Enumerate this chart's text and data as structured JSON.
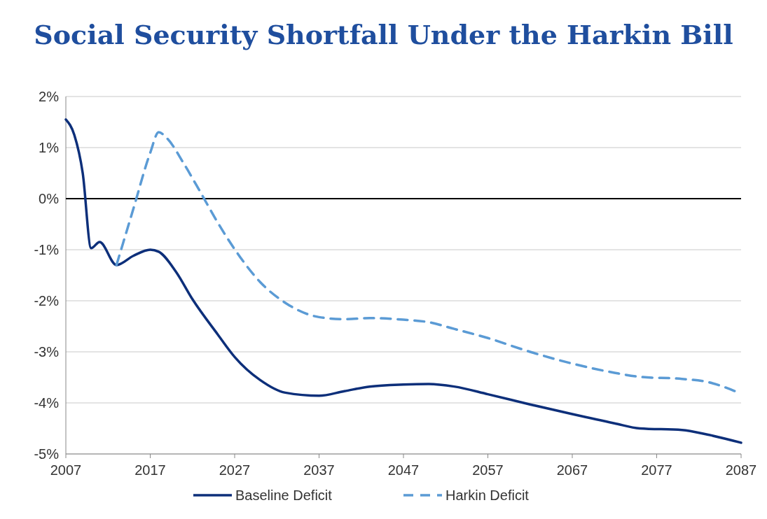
{
  "chart_data": {
    "type": "line",
    "title": "Social Security Shortfall Under the Harkin Bill",
    "xlim": [
      2007,
      2087
    ],
    "xticks": [
      2007,
      2017,
      2027,
      2037,
      2047,
      2057,
      2067,
      2077,
      2087
    ],
    "ylim": [
      -5,
      2
    ],
    "yticks": [
      {
        "value": -5,
        "label": "-5%"
      },
      {
        "value": -4,
        "label": "-4%"
      },
      {
        "value": -3,
        "label": "-3%"
      },
      {
        "value": -2,
        "label": "-2%"
      },
      {
        "value": -1,
        "label": "-1%"
      },
      {
        "value": 0,
        "label": "0%"
      },
      {
        "value": 1,
        "label": "1%"
      },
      {
        "value": 2,
        "label": "2%"
      }
    ],
    "grid": "y",
    "legend": "bottom",
    "ref_lines": [
      {
        "axis": "y",
        "value": 0,
        "color": "#000000"
      }
    ],
    "series": [
      {
        "name": "Baseline Deficit",
        "color": "#0d2f7a",
        "line_style": "solid",
        "x": [
          2007,
          2008,
          2009,
          2010,
          2011,
          2013,
          2015,
          2017,
          2018,
          2020,
          2022,
          2025,
          2027,
          2030,
          2033,
          2037,
          2040,
          2043,
          2047,
          2050,
          2053,
          2057,
          2062,
          2067,
          2072,
          2075,
          2080,
          2083,
          2087
        ],
        "values": [
          1.55,
          1.25,
          0.5,
          -0.97,
          -0.85,
          -1.3,
          -1.12,
          -1.0,
          -1.04,
          -1.42,
          -1.97,
          -2.66,
          -3.1,
          -3.55,
          -3.8,
          -3.86,
          -3.77,
          -3.68,
          -3.64,
          -3.63,
          -3.68,
          -3.83,
          -4.03,
          -4.22,
          -4.4,
          -4.5,
          -4.53,
          -4.62,
          -4.78
        ]
      },
      {
        "name": "Harkin Deficit",
        "color": "#5b9bd5",
        "line_style": "dashed",
        "x": [
          2013,
          2015,
          2017,
          2018,
          2019,
          2021,
          2023,
          2025,
          2027,
          2030,
          2033,
          2037,
          2040,
          2043,
          2047,
          2050,
          2053,
          2057,
          2062,
          2067,
          2072,
          2075,
          2080,
          2083,
          2087
        ],
        "values": [
          -1.3,
          -0.2,
          0.9,
          1.3,
          1.18,
          0.68,
          0.11,
          -0.47,
          -0.99,
          -1.63,
          -2.04,
          -2.32,
          -2.36,
          -2.34,
          -2.37,
          -2.42,
          -2.55,
          -2.73,
          -3.0,
          -3.23,
          -3.41,
          -3.49,
          -3.53,
          -3.59,
          -3.82
        ]
      }
    ]
  }
}
